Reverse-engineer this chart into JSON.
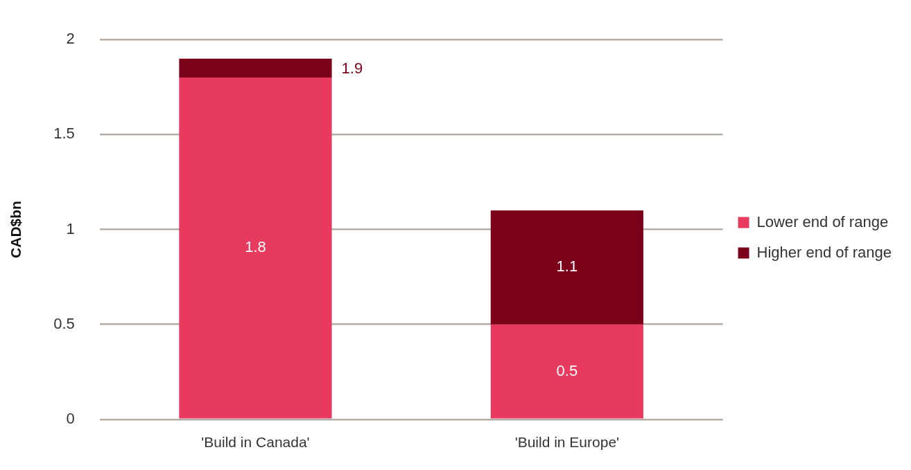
{
  "chart_data": {
    "type": "bar",
    "stacked": true,
    "ylabel": "CAD$bn",
    "categories": [
      "'Build in Canada'",
      "'Build in Europe'"
    ],
    "series": [
      {
        "name": "Lower end of range",
        "color": "#e8395e",
        "values": [
          1.8,
          0.5
        ],
        "value_labels": [
          "1.8",
          "0.5"
        ]
      },
      {
        "name": "Higher end of range",
        "color": "#7b0019",
        "values": [
          0.1,
          0.6
        ]
      }
    ],
    "totals": [
      "1.9",
      "1.1"
    ],
    "ylim": [
      0,
      2
    ],
    "yticks": [
      0,
      0.5,
      1,
      1.5,
      2
    ],
    "grid": "y",
    "legend": "right"
  }
}
